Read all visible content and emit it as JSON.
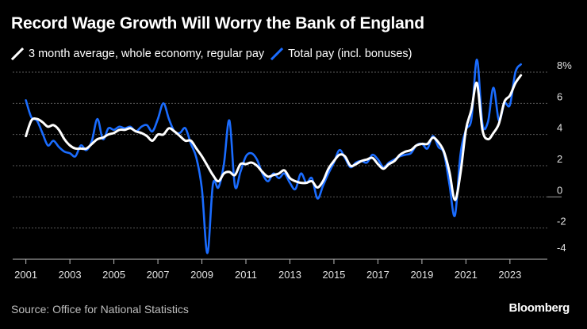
{
  "title": "Record Wage Growth Will Worry the Bank of England",
  "source": "Source: Office for National Statistics",
  "brand": "Bloomberg",
  "colors": {
    "background": "#000000",
    "regular": "#ffffff",
    "total": "#1a6cff",
    "grid": "#5a5a5a"
  },
  "chart_data": {
    "type": "line",
    "title": "Record Wage Growth Will Worry the Bank of England",
    "xlabel": "",
    "ylabel": "",
    "xlim": [
      2001,
      2023.75
    ],
    "ylim": [
      -4,
      8
    ],
    "y_ticks": [
      {
        "value": 8,
        "label": "8%"
      },
      {
        "value": 6,
        "label": "6"
      },
      {
        "value": 4,
        "label": "4"
      },
      {
        "value": 2,
        "label": "2"
      },
      {
        "value": 0,
        "label": "0"
      },
      {
        "value": -2,
        "label": "-2"
      },
      {
        "value": -4,
        "label": "-4"
      }
    ],
    "x_ticks": [
      {
        "value": 2001,
        "label": "2001"
      },
      {
        "value": 2003,
        "label": "2003"
      },
      {
        "value": 2005,
        "label": "2005"
      },
      {
        "value": 2007,
        "label": "2007"
      },
      {
        "value": 2009,
        "label": "2009"
      },
      {
        "value": 2011,
        "label": "2011"
      },
      {
        "value": 2013,
        "label": "2013"
      },
      {
        "value": 2015,
        "label": "2015"
      },
      {
        "value": 2017,
        "label": "2017"
      },
      {
        "value": 2019,
        "label": "2019"
      },
      {
        "value": 2021,
        "label": "2021"
      },
      {
        "value": 2023,
        "label": "2023"
      }
    ],
    "series": [
      {
        "name": "3 month average, whole economy, regular pay",
        "color": "#ffffff",
        "points": [
          [
            2001.0,
            3.9
          ],
          [
            2001.25,
            4.9
          ],
          [
            2001.5,
            5.0
          ],
          [
            2001.75,
            4.8
          ],
          [
            2002.0,
            4.5
          ],
          [
            2002.25,
            4.6
          ],
          [
            2002.5,
            4.3
          ],
          [
            2002.75,
            3.7
          ],
          [
            2003.0,
            3.3
          ],
          [
            2003.25,
            3.1
          ],
          [
            2003.5,
            3.1
          ],
          [
            2003.75,
            3.1
          ],
          [
            2004.0,
            3.4
          ],
          [
            2004.25,
            3.7
          ],
          [
            2004.5,
            3.8
          ],
          [
            2004.75,
            4.0
          ],
          [
            2005.0,
            4.1
          ],
          [
            2005.25,
            4.3
          ],
          [
            2005.5,
            4.3
          ],
          [
            2005.75,
            4.4
          ],
          [
            2006.0,
            4.2
          ],
          [
            2006.25,
            4.1
          ],
          [
            2006.5,
            3.9
          ],
          [
            2006.75,
            3.6
          ],
          [
            2007.0,
            4.0
          ],
          [
            2007.25,
            4.0
          ],
          [
            2007.5,
            4.4
          ],
          [
            2007.75,
            4.2
          ],
          [
            2008.0,
            3.9
          ],
          [
            2008.25,
            3.6
          ],
          [
            2008.5,
            3.6
          ],
          [
            2008.75,
            3.1
          ],
          [
            2009.0,
            2.6
          ],
          [
            2009.25,
            2.0
          ],
          [
            2009.5,
            1.4
          ],
          [
            2009.75,
            1.0
          ],
          [
            2010.0,
            1.5
          ],
          [
            2010.25,
            1.6
          ],
          [
            2010.5,
            1.4
          ],
          [
            2010.75,
            2.1
          ],
          [
            2011.0,
            2.1
          ],
          [
            2011.25,
            2.2
          ],
          [
            2011.5,
            2.0
          ],
          [
            2011.75,
            1.6
          ],
          [
            2012.0,
            1.3
          ],
          [
            2012.25,
            1.4
          ],
          [
            2012.5,
            1.5
          ],
          [
            2012.75,
            1.7
          ],
          [
            2013.0,
            1.2
          ],
          [
            2013.25,
            1.0
          ],
          [
            2013.5,
            0.9
          ],
          [
            2013.75,
            0.9
          ],
          [
            2014.0,
            1.0
          ],
          [
            2014.25,
            0.6
          ],
          [
            2014.5,
            1.0
          ],
          [
            2014.75,
            1.8
          ],
          [
            2015.0,
            2.3
          ],
          [
            2015.25,
            2.7
          ],
          [
            2015.5,
            2.6
          ],
          [
            2015.75,
            2.0
          ],
          [
            2016.0,
            2.1
          ],
          [
            2016.25,
            2.3
          ],
          [
            2016.5,
            2.4
          ],
          [
            2016.75,
            2.5
          ],
          [
            2017.0,
            2.1
          ],
          [
            2017.25,
            1.8
          ],
          [
            2017.5,
            2.1
          ],
          [
            2017.75,
            2.3
          ],
          [
            2018.0,
            2.7
          ],
          [
            2018.25,
            2.9
          ],
          [
            2018.5,
            3.0
          ],
          [
            2018.75,
            3.3
          ],
          [
            2019.0,
            3.4
          ],
          [
            2019.25,
            3.4
          ],
          [
            2019.5,
            3.8
          ],
          [
            2019.75,
            3.5
          ],
          [
            2020.0,
            2.9
          ],
          [
            2020.25,
            1.6
          ],
          [
            2020.5,
            -0.2
          ],
          [
            2020.75,
            1.5
          ],
          [
            2021.0,
            4.3
          ],
          [
            2021.25,
            5.6
          ],
          [
            2021.5,
            7.3
          ],
          [
            2021.75,
            4.3
          ],
          [
            2022.0,
            3.7
          ],
          [
            2022.25,
            4.1
          ],
          [
            2022.5,
            4.7
          ],
          [
            2022.75,
            6.1
          ],
          [
            2023.0,
            6.5
          ],
          [
            2023.25,
            7.3
          ],
          [
            2023.5,
            7.8
          ]
        ]
      },
      {
        "name": "Total pay (incl. bonuses)",
        "color": "#1a6cff",
        "points": [
          [
            2001.0,
            6.2
          ],
          [
            2001.25,
            5.1
          ],
          [
            2001.5,
            4.9
          ],
          [
            2001.75,
            4.1
          ],
          [
            2002.0,
            3.3
          ],
          [
            2002.25,
            3.6
          ],
          [
            2002.5,
            3.2
          ],
          [
            2002.75,
            2.9
          ],
          [
            2003.0,
            2.8
          ],
          [
            2003.25,
            2.6
          ],
          [
            2003.5,
            3.3
          ],
          [
            2003.75,
            3.0
          ],
          [
            2004.0,
            3.6
          ],
          [
            2004.25,
            5.0
          ],
          [
            2004.5,
            3.7
          ],
          [
            2004.75,
            4.4
          ],
          [
            2005.0,
            4.3
          ],
          [
            2005.25,
            4.5
          ],
          [
            2005.5,
            4.4
          ],
          [
            2005.75,
            4.5
          ],
          [
            2006.0,
            4.2
          ],
          [
            2006.25,
            4.5
          ],
          [
            2006.5,
            4.6
          ],
          [
            2006.75,
            4.2
          ],
          [
            2007.0,
            5.0
          ],
          [
            2007.25,
            6.0
          ],
          [
            2007.5,
            5.0
          ],
          [
            2007.75,
            4.2
          ],
          [
            2008.0,
            4.1
          ],
          [
            2008.25,
            4.4
          ],
          [
            2008.5,
            3.4
          ],
          [
            2008.75,
            2.5
          ],
          [
            2009.0,
            0.5
          ],
          [
            2009.25,
            -3.6
          ],
          [
            2009.5,
            0.8
          ],
          [
            2009.75,
            0.6
          ],
          [
            2010.0,
            2.1
          ],
          [
            2010.25,
            4.9
          ],
          [
            2010.5,
            0.7
          ],
          [
            2010.75,
            1.6
          ],
          [
            2011.0,
            2.6
          ],
          [
            2011.25,
            2.8
          ],
          [
            2011.5,
            2.4
          ],
          [
            2011.75,
            1.5
          ],
          [
            2012.0,
            1.0
          ],
          [
            2012.25,
            1.5
          ],
          [
            2012.5,
            1.2
          ],
          [
            2012.75,
            1.5
          ],
          [
            2013.0,
            0.9
          ],
          [
            2013.25,
            0.5
          ],
          [
            2013.5,
            1.5
          ],
          [
            2013.75,
            0.9
          ],
          [
            2014.0,
            1.2
          ],
          [
            2014.25,
            -0.1
          ],
          [
            2014.5,
            0.7
          ],
          [
            2014.75,
            1.5
          ],
          [
            2015.0,
            2.2
          ],
          [
            2015.25,
            3.0
          ],
          [
            2015.5,
            2.5
          ],
          [
            2015.75,
            1.9
          ],
          [
            2016.0,
            2.2
          ],
          [
            2016.25,
            2.3
          ],
          [
            2016.5,
            2.2
          ],
          [
            2016.75,
            2.7
          ],
          [
            2017.0,
            2.4
          ],
          [
            2017.25,
            1.9
          ],
          [
            2017.5,
            2.2
          ],
          [
            2017.75,
            2.4
          ],
          [
            2018.0,
            2.6
          ],
          [
            2018.25,
            2.7
          ],
          [
            2018.5,
            2.8
          ],
          [
            2018.75,
            3.3
          ],
          [
            2019.0,
            3.4
          ],
          [
            2019.25,
            3.1
          ],
          [
            2019.5,
            3.9
          ],
          [
            2019.75,
            3.2
          ],
          [
            2020.0,
            2.8
          ],
          [
            2020.25,
            0.8
          ],
          [
            2020.5,
            -1.2
          ],
          [
            2020.75,
            2.7
          ],
          [
            2021.0,
            4.3
          ],
          [
            2021.25,
            5.0
          ],
          [
            2021.5,
            8.8
          ],
          [
            2021.75,
            4.7
          ],
          [
            2022.0,
            4.8
          ],
          [
            2022.25,
            7.0
          ],
          [
            2022.5,
            4.9
          ],
          [
            2022.75,
            6.0
          ],
          [
            2023.0,
            5.9
          ],
          [
            2023.25,
            8.0
          ],
          [
            2023.5,
            8.5
          ]
        ]
      }
    ]
  }
}
